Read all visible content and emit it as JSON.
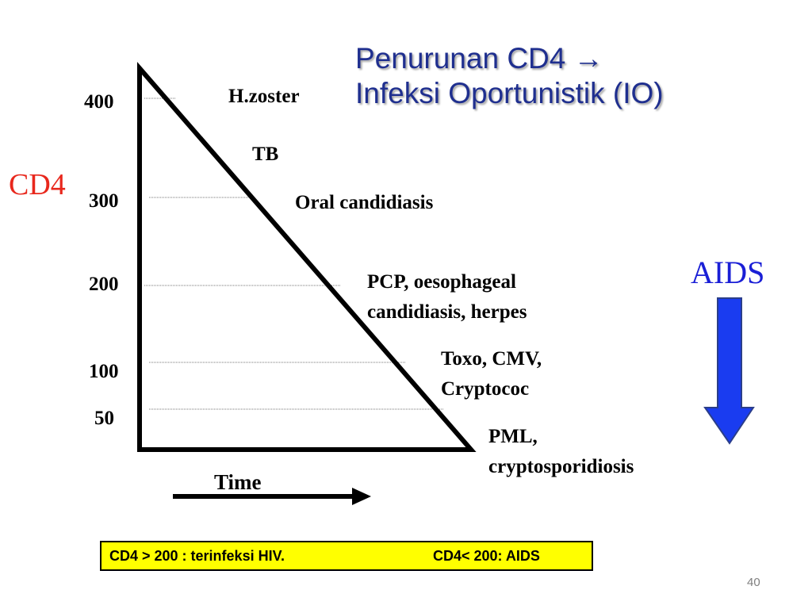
{
  "slide": {
    "title_line1": "Penurunan CD4 →",
    "title_line2": "Infeksi Oportunistik (IO)",
    "y_axis_label": "CD4",
    "y_ticks": [
      "400",
      "300",
      "200",
      "100",
      "50"
    ],
    "events": {
      "hzoster": "H.zoster",
      "tb": "TB",
      "oral": "Oral candidiasis",
      "pcp_line1": "PCP, oesophageal",
      "pcp_line2": "candidiasis, herpes",
      "toxo_line1": "Toxo, CMV,",
      "toxo_line2": "Cryptococ",
      "pml_line1": "PML,",
      "pml_line2": "cryptosporidiosis"
    },
    "aids_label": "AIDS",
    "x_axis_label": "Time",
    "note_left": "CD4 > 200 : terinfeksi HIV.",
    "note_right": "CD4< 200: AIDS",
    "page_number": "40",
    "colors": {
      "title": "#1f2f8f",
      "cd4": "#e8271c",
      "aids": "#1a1fd6",
      "arrow_fill": "#1a3cf0",
      "note_bg": "#ffff00"
    }
  }
}
